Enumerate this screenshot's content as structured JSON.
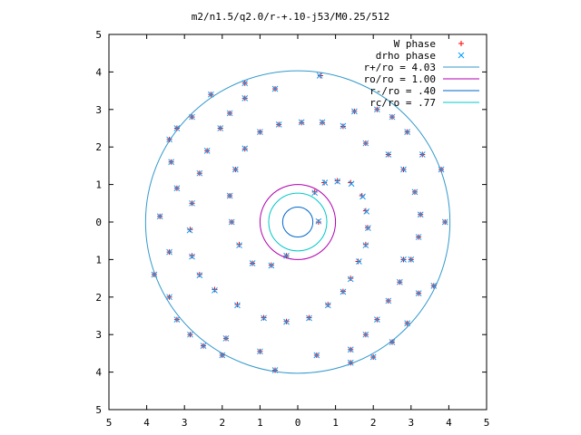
{
  "chart_data": {
    "type": "scatter",
    "title": "m2/n1.5/q2.0/r-+.10-j53/M0.25/512",
    "xlabel": "",
    "ylabel": "",
    "xlim": [
      -5,
      5
    ],
    "ylim": [
      -5,
      5
    ],
    "x_tick_labels": [
      "5",
      "4",
      "3",
      "2",
      "1",
      "0",
      "1",
      "2",
      "3",
      "4",
      "5"
    ],
    "y_tick_labels": [
      "5",
      "4",
      "3",
      "2",
      "1",
      "0",
      "1",
      "2",
      "3",
      "4",
      "5"
    ],
    "grid": false,
    "legend_position": "top-right",
    "legend": [
      {
        "label": "W phase",
        "kind": "marker",
        "marker": "plus",
        "color": "#ff0000"
      },
      {
        "label": "drho phase",
        "kind": "marker",
        "marker": "cross",
        "color": "#00a0ff"
      },
      {
        "label": "r+/ro = 4.03",
        "kind": "line",
        "color": "#3399cc"
      },
      {
        "label": "ro/ro = 1.00",
        "kind": "line",
        "color": "#b000b0"
      },
      {
        "label": "r-/ro = .40",
        "kind": "line",
        "color": "#0066cc"
      },
      {
        "label": "rc/ro = .77",
        "kind": "line",
        "color": "#00c8c8"
      }
    ],
    "circles": [
      {
        "name": "r+/ro = 4.03",
        "radius": 4.03,
        "color": "#3399cc"
      },
      {
        "name": "ro/ro = 1.00",
        "radius": 1.0,
        "color": "#b000b0"
      },
      {
        "name": "r-/ro = .40",
        "radius": 0.4,
        "color": "#0066cc"
      },
      {
        "name": "rc/ro = .77",
        "radius": 0.77,
        "color": "#00c8c8"
      }
    ],
    "series": [
      {
        "name": "W phase",
        "marker": "plus",
        "color": "#ff0000",
        "points": [
          [
            0.45,
            0.8
          ],
          [
            0.7,
            1.05
          ],
          [
            1.05,
            1.1
          ],
          [
            1.4,
            1.05
          ],
          [
            1.7,
            0.7
          ],
          [
            1.8,
            0.3
          ],
          [
            1.85,
            -0.15
          ],
          [
            1.8,
            -0.6
          ],
          [
            1.6,
            -1.05
          ],
          [
            1.4,
            -1.5
          ],
          [
            1.2,
            -1.85
          ],
          [
            0.8,
            -2.2
          ],
          [
            0.3,
            -2.55
          ],
          [
            -0.3,
            -2.65
          ],
          [
            -0.9,
            -2.55
          ],
          [
            -1.6,
            -2.2
          ],
          [
            -2.2,
            -1.8
          ],
          [
            -2.6,
            -1.4
          ],
          [
            -2.8,
            -0.9
          ],
          [
            -2.85,
            -0.2
          ],
          [
            -2.8,
            0.5
          ],
          [
            -2.6,
            1.3
          ],
          [
            -2.4,
            1.9
          ],
          [
            -2.05,
            2.5
          ],
          [
            -1.8,
            2.9
          ],
          [
            -1.4,
            3.3
          ],
          [
            0.6,
            3.9
          ],
          [
            0.1,
            2.65
          ],
          [
            -0.5,
            2.6
          ],
          [
            -1.0,
            2.4
          ],
          [
            -1.4,
            1.95
          ],
          [
            -1.65,
            1.4
          ],
          [
            -1.8,
            0.7
          ],
          [
            -1.75,
            0.0
          ],
          [
            -1.55,
            -0.6
          ],
          [
            -1.2,
            -1.1
          ],
          [
            -0.7,
            -1.15
          ],
          [
            -0.3,
            -0.9
          ],
          [
            0.55,
            0.0
          ],
          [
            0.65,
            2.65
          ],
          [
            1.2,
            2.55
          ],
          [
            1.8,
            2.1
          ],
          [
            2.4,
            1.8
          ],
          [
            2.8,
            1.4
          ],
          [
            3.1,
            0.8
          ],
          [
            3.25,
            0.2
          ],
          [
            3.2,
            -0.4
          ],
          [
            3.0,
            -1.0
          ],
          [
            2.7,
            -1.6
          ],
          [
            2.4,
            -2.1
          ],
          [
            2.1,
            -2.6
          ],
          [
            1.8,
            -3.0
          ],
          [
            1.4,
            -3.4
          ],
          [
            2.5,
            -3.2
          ],
          [
            2.9,
            -2.7
          ],
          [
            3.2,
            -1.9
          ],
          [
            3.6,
            -1.7
          ],
          [
            3.9,
            0.0
          ],
          [
            3.8,
            1.4
          ],
          [
            3.3,
            1.8
          ],
          [
            2.9,
            2.4
          ],
          [
            2.5,
            2.8
          ],
          [
            2.1,
            3.0
          ],
          [
            -3.65,
            0.15
          ],
          [
            -3.2,
            0.9
          ],
          [
            -3.35,
            1.6
          ],
          [
            -3.4,
            -0.8
          ],
          [
            -3.8,
            -1.4
          ],
          [
            -3.4,
            -2.0
          ],
          [
            -3.2,
            -2.6
          ],
          [
            -2.85,
            -3.0
          ],
          [
            -2.5,
            -3.3
          ],
          [
            -2.0,
            -3.55
          ],
          [
            -1.9,
            -3.1
          ],
          [
            -1.0,
            -3.45
          ],
          [
            -0.6,
            -3.95
          ],
          [
            0.5,
            -3.55
          ],
          [
            1.4,
            -3.75
          ],
          [
            2.0,
            -3.6
          ],
          [
            -2.3,
            3.4
          ],
          [
            -1.4,
            3.7
          ],
          [
            -0.6,
            3.55
          ],
          [
            -2.8,
            2.8
          ],
          [
            -3.2,
            2.5
          ],
          [
            -3.4,
            2.2
          ],
          [
            1.5,
            2.95
          ],
          [
            2.8,
            -1.0
          ]
        ]
      },
      {
        "name": "drho phase",
        "marker": "cross",
        "color": "#00a0ff",
        "points": [
          [
            0.45,
            0.78
          ],
          [
            0.72,
            1.05
          ],
          [
            1.05,
            1.08
          ],
          [
            1.42,
            1.02
          ],
          [
            1.72,
            0.68
          ],
          [
            1.82,
            0.28
          ],
          [
            1.86,
            -0.16
          ],
          [
            1.8,
            -0.62
          ],
          [
            1.62,
            -1.05
          ],
          [
            1.4,
            -1.52
          ],
          [
            1.2,
            -1.86
          ],
          [
            0.8,
            -2.22
          ],
          [
            0.3,
            -2.56
          ],
          [
            -0.3,
            -2.66
          ],
          [
            -0.9,
            -2.56
          ],
          [
            -1.6,
            -2.22
          ],
          [
            -2.2,
            -1.82
          ],
          [
            -2.6,
            -1.42
          ],
          [
            -2.8,
            -0.92
          ],
          [
            -2.86,
            -0.22
          ],
          [
            -2.8,
            0.5
          ],
          [
            -2.6,
            1.3
          ],
          [
            -2.4,
            1.9
          ],
          [
            -2.05,
            2.5
          ],
          [
            -1.8,
            2.9
          ],
          [
            -1.4,
            3.3
          ],
          [
            0.58,
            3.9
          ],
          [
            0.1,
            2.66
          ],
          [
            -0.5,
            2.6
          ],
          [
            -1.0,
            2.4
          ],
          [
            -1.4,
            1.96
          ],
          [
            -1.65,
            1.4
          ],
          [
            -1.8,
            0.7
          ],
          [
            -1.75,
            0.0
          ],
          [
            -1.55,
            -0.62
          ],
          [
            -1.2,
            -1.1
          ],
          [
            -0.7,
            -1.16
          ],
          [
            -0.3,
            -0.9
          ],
          [
            0.55,
            0.02
          ],
          [
            0.65,
            2.66
          ],
          [
            1.2,
            2.56
          ],
          [
            1.8,
            2.1
          ],
          [
            2.4,
            1.8
          ],
          [
            2.8,
            1.4
          ],
          [
            3.1,
            0.8
          ],
          [
            3.25,
            0.2
          ],
          [
            3.2,
            -0.4
          ],
          [
            3.0,
            -1.0
          ],
          [
            2.7,
            -1.6
          ],
          [
            2.4,
            -2.1
          ],
          [
            2.1,
            -2.6
          ],
          [
            1.8,
            -3.0
          ],
          [
            1.4,
            -3.4
          ],
          [
            2.5,
            -3.2
          ],
          [
            2.9,
            -2.7
          ],
          [
            3.2,
            -1.9
          ],
          [
            3.6,
            -1.7
          ],
          [
            3.9,
            0.0
          ],
          [
            3.8,
            1.4
          ],
          [
            3.3,
            1.8
          ],
          [
            2.9,
            2.4
          ],
          [
            2.5,
            2.8
          ],
          [
            2.1,
            3.0
          ],
          [
            -3.65,
            0.15
          ],
          [
            -3.2,
            0.9
          ],
          [
            -3.35,
            1.6
          ],
          [
            -3.4,
            -0.8
          ],
          [
            -3.8,
            -1.4
          ],
          [
            -3.4,
            -2.0
          ],
          [
            -3.2,
            -2.6
          ],
          [
            -2.85,
            -3.0
          ],
          [
            -2.5,
            -3.3
          ],
          [
            -2.0,
            -3.55
          ],
          [
            -1.9,
            -3.1
          ],
          [
            -1.0,
            -3.45
          ],
          [
            -0.6,
            -3.95
          ],
          [
            0.5,
            -3.55
          ],
          [
            1.4,
            -3.75
          ],
          [
            2.0,
            -3.6
          ],
          [
            -2.3,
            3.4
          ],
          [
            -1.4,
            3.7
          ],
          [
            -0.6,
            3.55
          ],
          [
            -2.8,
            2.8
          ],
          [
            -3.2,
            2.5
          ],
          [
            -3.4,
            2.2
          ],
          [
            1.5,
            2.95
          ],
          [
            2.8,
            -1.0
          ]
        ]
      }
    ]
  }
}
